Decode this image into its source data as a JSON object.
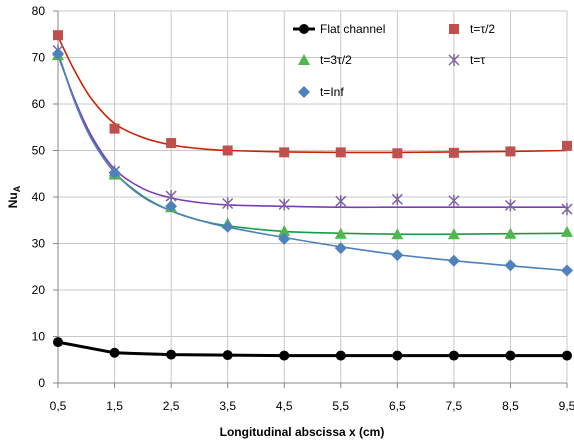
{
  "chart_data": {
    "type": "line",
    "title": "",
    "xlabel": "Longitudinal abscissa x (cm)",
    "ylabel_main": "Nu",
    "ylabel_sub": "A",
    "x_ticks": [
      "0,5",
      "1,5",
      "2,5",
      "3,5",
      "4,5",
      "5,5",
      "6,5",
      "7,5",
      "8,5",
      "9,5"
    ],
    "x_values": [
      0.5,
      1.5,
      2.5,
      3.5,
      4.5,
      5.5,
      6.5,
      7.5,
      8.5,
      9.5
    ],
    "xlim": [
      0.5,
      9.5
    ],
    "ylim": [
      0,
      80
    ],
    "y_ticks": [
      0,
      10,
      20,
      30,
      40,
      50,
      60,
      70,
      80
    ],
    "grid": true,
    "legend_position": "top-right",
    "series": [
      {
        "name": "Flat channel",
        "marker": "circle",
        "color": "#000000",
        "points": [
          [
            0.5,
            8.8
          ],
          [
            1.5,
            6.5
          ],
          [
            2.5,
            6.1
          ],
          [
            3.5,
            6.0
          ],
          [
            4.5,
            5.9
          ],
          [
            5.5,
            5.9
          ],
          [
            6.5,
            5.9
          ],
          [
            7.5,
            5.9
          ],
          [
            8.5,
            5.9
          ],
          [
            9.5,
            5.9
          ]
        ],
        "fit": [
          [
            0.5,
            8.8
          ],
          [
            1.5,
            6.5
          ],
          [
            2.5,
            6.1
          ],
          [
            3.5,
            6.0
          ],
          [
            4.5,
            5.9
          ],
          [
            5.5,
            5.9
          ],
          [
            6.5,
            5.9
          ],
          [
            7.5,
            5.9
          ],
          [
            8.5,
            5.9
          ],
          [
            9.5,
            5.9
          ]
        ]
      },
      {
        "name": "t=τ/2",
        "marker": "square",
        "color": "#c0504d",
        "line_color": "#cc2200",
        "points": [
          [
            0.5,
            74.8
          ],
          [
            1.5,
            54.7
          ],
          [
            2.5,
            51.6
          ],
          [
            3.5,
            50.0
          ],
          [
            4.5,
            49.6
          ],
          [
            5.5,
            49.6
          ],
          [
            6.5,
            49.4
          ],
          [
            7.5,
            49.5
          ],
          [
            8.5,
            49.8
          ],
          [
            9.5,
            51.0
          ]
        ],
        "fit": [
          [
            0.5,
            74.5
          ],
          [
            0.8,
            67.0
          ],
          [
            1.1,
            61.0
          ],
          [
            1.5,
            55.8
          ],
          [
            2.0,
            52.8
          ],
          [
            2.5,
            51.2
          ],
          [
            3.0,
            50.4
          ],
          [
            3.5,
            50.0
          ],
          [
            4.5,
            49.7
          ],
          [
            5.5,
            49.6
          ],
          [
            6.5,
            49.6
          ],
          [
            7.5,
            49.7
          ],
          [
            8.5,
            49.8
          ],
          [
            9.5,
            50.0
          ]
        ]
      },
      {
        "name": "t=3τ/2",
        "marker": "triangle",
        "color": "#4fb84a",
        "line_color": "#1a9a4a",
        "points": [
          [
            0.5,
            70.5
          ],
          [
            1.5,
            44.8
          ],
          [
            2.5,
            37.8
          ],
          [
            3.5,
            34.3
          ],
          [
            4.5,
            32.7
          ],
          [
            5.5,
            32.1
          ],
          [
            6.5,
            32.0
          ],
          [
            7.5,
            32.0
          ],
          [
            8.5,
            32.1
          ],
          [
            9.5,
            32.5
          ]
        ],
        "fit": [
          [
            0.5,
            71.0
          ],
          [
            0.8,
            60.5
          ],
          [
            1.1,
            52.5
          ],
          [
            1.5,
            45.3
          ],
          [
            2.0,
            40.2
          ],
          [
            2.5,
            37.0
          ],
          [
            3.0,
            35.0
          ],
          [
            3.5,
            33.8
          ],
          [
            4.5,
            32.6
          ],
          [
            5.5,
            32.2
          ],
          [
            6.5,
            32.0
          ],
          [
            7.5,
            32.0
          ],
          [
            8.5,
            32.1
          ],
          [
            9.5,
            32.2
          ]
        ]
      },
      {
        "name": "t=τ",
        "marker": "star",
        "color": "#8064a2",
        "line_color": "#7b3fb3",
        "points": [
          [
            0.5,
            71.5
          ],
          [
            1.5,
            45.5
          ],
          [
            2.5,
            40.2
          ],
          [
            3.5,
            38.6
          ],
          [
            4.5,
            38.4
          ],
          [
            5.5,
            39.1
          ],
          [
            6.5,
            39.5
          ],
          [
            7.5,
            39.2
          ],
          [
            8.5,
            38.2
          ],
          [
            9.5,
            37.4
          ]
        ],
        "fit": [
          [
            0.5,
            70.5
          ],
          [
            0.8,
            60.8
          ],
          [
            1.1,
            53.0
          ],
          [
            1.5,
            46.0
          ],
          [
            2.0,
            41.8
          ],
          [
            2.5,
            39.8
          ],
          [
            3.0,
            38.8
          ],
          [
            3.5,
            38.3
          ],
          [
            4.5,
            38.0
          ],
          [
            5.5,
            37.8
          ],
          [
            6.5,
            37.8
          ],
          [
            7.5,
            37.8
          ],
          [
            8.5,
            37.8
          ],
          [
            9.5,
            37.8
          ]
        ]
      },
      {
        "name": "t=Inf",
        "marker": "diamond",
        "color": "#4f81bd",
        "line_color": "#4f81bd",
        "points": [
          [
            0.5,
            70.8
          ],
          [
            1.5,
            45.2
          ],
          [
            2.5,
            38.0
          ],
          [
            3.5,
            33.6
          ],
          [
            4.5,
            31.0
          ],
          [
            5.5,
            29.0
          ],
          [
            6.5,
            27.5
          ],
          [
            7.5,
            26.3
          ],
          [
            8.5,
            25.3
          ],
          [
            9.5,
            24.2
          ]
        ],
        "fit": [
          [
            0.5,
            71.0
          ],
          [
            0.8,
            60.3
          ],
          [
            1.1,
            52.3
          ],
          [
            1.5,
            45.3
          ],
          [
            2.0,
            40.0
          ],
          [
            2.5,
            37.0
          ],
          [
            3.0,
            35.0
          ],
          [
            3.5,
            33.5
          ],
          [
            4.5,
            31.3
          ],
          [
            5.5,
            29.3
          ],
          [
            6.5,
            27.6
          ],
          [
            7.5,
            26.3
          ],
          [
            8.5,
            25.2
          ],
          [
            9.5,
            24.2
          ]
        ]
      }
    ]
  }
}
